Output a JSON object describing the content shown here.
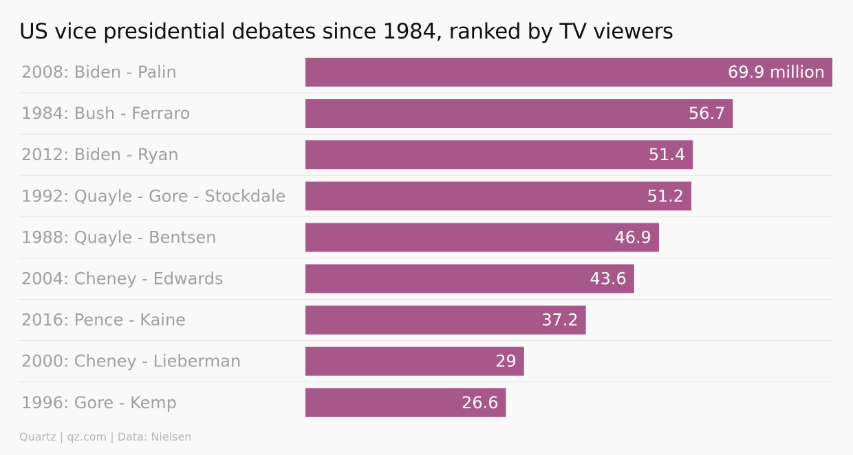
{
  "chart_data": {
    "type": "bar",
    "orientation": "horizontal",
    "title": "US vice presidential debates since 1984, ranked by TV viewers",
    "categories": [
      "2008: Biden - Palin",
      "1984: Bush - Ferraro",
      "2012: Biden - Ryan",
      "1992: Quayle - Gore - Stockdale",
      "1988: Quayle - Bentsen",
      "2004: Cheney - Edwards",
      "2016: Pence - Kaine",
      "2000: Cheney - Lieberman",
      "1996: Gore - Kemp"
    ],
    "values": [
      69.9,
      56.7,
      51.4,
      51.2,
      46.9,
      43.6,
      37.2,
      29,
      26.6
    ],
    "value_labels": [
      "69.9 million",
      "56.7",
      "51.4",
      "51.2",
      "46.9",
      "43.6",
      "37.2",
      "29",
      "26.6"
    ],
    "xlim": [
      0,
      69.9
    ],
    "bar_color": "#a8578a",
    "grid": false,
    "legend": "none"
  },
  "footer": {
    "source": "Quartz | qz.com | Data: Nielsen"
  }
}
